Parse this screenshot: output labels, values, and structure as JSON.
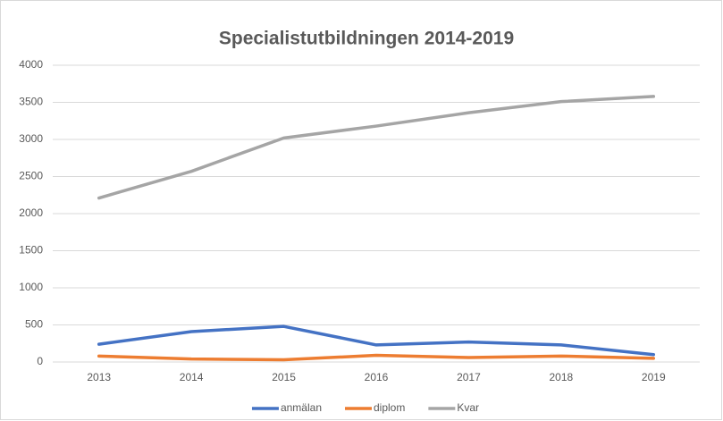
{
  "chart_data": {
    "type": "line",
    "title": "Specialistutbildningen 2014-2019",
    "categories": [
      "2013",
      "2014",
      "2015",
      "2016",
      "2017",
      "2018",
      "2019"
    ],
    "series": [
      {
        "name": "anmälan",
        "color": "#4472c4",
        "values": [
          240,
          410,
          480,
          230,
          270,
          230,
          100
        ]
      },
      {
        "name": "diplom",
        "color": "#ed7d31",
        "values": [
          80,
          40,
          30,
          90,
          60,
          80,
          50
        ]
      },
      {
        "name": "Kvar",
        "color": "#a5a5a5",
        "values": [
          2210,
          2570,
          3020,
          3180,
          3360,
          3510,
          3580
        ]
      }
    ],
    "ylim": [
      0,
      4000
    ],
    "yticks": [
      0,
      500,
      1000,
      1500,
      2000,
      2500,
      3000,
      3500,
      4000
    ],
    "grid": true,
    "legend": "bottom"
  }
}
